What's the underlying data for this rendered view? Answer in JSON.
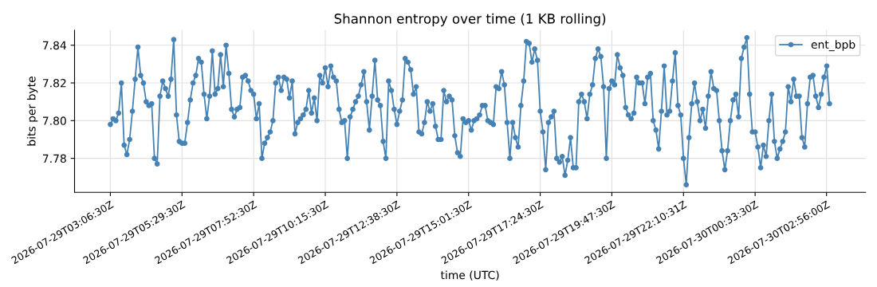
{
  "chart_data": {
    "type": "line",
    "title": "Shannon entropy over time (1 KB rolling)",
    "xlabel": "time (UTC)",
    "ylabel": "bits per byte",
    "x": [
      "2026-07-29T03:06:30",
      "2026-07-29T03:12:00",
      "2026-07-29T03:17:30",
      "2026-07-29T03:23:00",
      "2026-07-29T03:28:30",
      "2026-07-29T03:34:00",
      "2026-07-29T03:39:30",
      "2026-07-29T03:45:00",
      "2026-07-29T03:50:30",
      "2026-07-29T03:56:00",
      "2026-07-29T04:01:30",
      "2026-07-29T04:07:00",
      "2026-07-29T04:12:30",
      "2026-07-29T04:18:00",
      "2026-07-29T04:23:30",
      "2026-07-29T04:29:00",
      "2026-07-29T04:34:30",
      "2026-07-29T04:40:00",
      "2026-07-29T04:45:30",
      "2026-07-29T04:51:00",
      "2026-07-29T04:56:30",
      "2026-07-29T05:02:00",
      "2026-07-29T05:07:30",
      "2026-07-29T05:13:00",
      "2026-07-29T05:18:30",
      "2026-07-29T05:24:00",
      "2026-07-29T05:29:30",
      "2026-07-29T05:35:00",
      "2026-07-29T05:40:30",
      "2026-07-29T05:46:00",
      "2026-07-29T05:51:30",
      "2026-07-29T05:57:00",
      "2026-07-29T06:02:30",
      "2026-07-29T06:08:00",
      "2026-07-29T06:13:30",
      "2026-07-29T06:19:00",
      "2026-07-29T06:24:30",
      "2026-07-29T06:30:00",
      "2026-07-29T06:35:30",
      "2026-07-29T06:41:00",
      "2026-07-29T06:46:30",
      "2026-07-29T06:52:00",
      "2026-07-29T06:57:30",
      "2026-07-29T07:03:00",
      "2026-07-29T07:08:30",
      "2026-07-29T07:14:00",
      "2026-07-29T07:19:30",
      "2026-07-29T07:25:00",
      "2026-07-29T07:30:30",
      "2026-07-29T07:36:00",
      "2026-07-29T07:41:30",
      "2026-07-29T07:47:00",
      "2026-07-29T07:52:30",
      "2026-07-29T07:58:00",
      "2026-07-29T08:03:30",
      "2026-07-29T08:09:00",
      "2026-07-29T08:14:30",
      "2026-07-29T08:20:00",
      "2026-07-29T08:25:30",
      "2026-07-29T08:31:00",
      "2026-07-29T08:36:30",
      "2026-07-29T08:42:00",
      "2026-07-29T08:47:30",
      "2026-07-29T08:53:00",
      "2026-07-29T08:58:30",
      "2026-07-29T09:04:00",
      "2026-07-29T09:09:30",
      "2026-07-29T09:15:00",
      "2026-07-29T09:20:30",
      "2026-07-29T09:26:00",
      "2026-07-29T09:31:30",
      "2026-07-29T09:37:00",
      "2026-07-29T09:42:30",
      "2026-07-29T09:48:00",
      "2026-07-29T09:53:30",
      "2026-07-29T09:59:00",
      "2026-07-29T10:04:30",
      "2026-07-29T10:10:00",
      "2026-07-29T10:15:30",
      "2026-07-29T10:21:00",
      "2026-07-29T10:26:30",
      "2026-07-29T10:32:00",
      "2026-07-29T10:37:30",
      "2026-07-29T10:43:00",
      "2026-07-29T10:48:30",
      "2026-07-29T10:54:00",
      "2026-07-29T10:59:30",
      "2026-07-29T11:05:00",
      "2026-07-29T11:10:30",
      "2026-07-29T11:16:00",
      "2026-07-29T11:21:30",
      "2026-07-29T11:27:00",
      "2026-07-29T11:32:30",
      "2026-07-29T11:38:00",
      "2026-07-29T11:43:30",
      "2026-07-29T11:49:00",
      "2026-07-29T11:54:30",
      "2026-07-29T12:00:00",
      "2026-07-29T12:05:30",
      "2026-07-29T12:11:00",
      "2026-07-29T12:16:30",
      "2026-07-29T12:22:00",
      "2026-07-29T12:27:30",
      "2026-07-29T12:33:00",
      "2026-07-29T12:38:30",
      "2026-07-29T12:44:00",
      "2026-07-29T12:49:30",
      "2026-07-29T12:55:00",
      "2026-07-29T13:00:30",
      "2026-07-29T13:06:00",
      "2026-07-29T13:11:30",
      "2026-07-29T13:17:00",
      "2026-07-29T13:22:30",
      "2026-07-29T13:28:00",
      "2026-07-29T13:33:30",
      "2026-07-29T13:39:00",
      "2026-07-29T13:44:30",
      "2026-07-29T13:50:00",
      "2026-07-29T13:55:30",
      "2026-07-29T14:01:00",
      "2026-07-29T14:06:30",
      "2026-07-29T14:12:00",
      "2026-07-29T14:17:30",
      "2026-07-29T14:23:00",
      "2026-07-29T14:28:30",
      "2026-07-29T14:34:00",
      "2026-07-29T14:39:30",
      "2026-07-29T14:45:00",
      "2026-07-29T14:50:30",
      "2026-07-29T14:56:00",
      "2026-07-29T15:01:30",
      "2026-07-29T15:07:00",
      "2026-07-29T15:12:30",
      "2026-07-29T15:18:00",
      "2026-07-29T15:23:30",
      "2026-07-29T15:29:00",
      "2026-07-29T15:34:30",
      "2026-07-29T15:40:00",
      "2026-07-29T15:45:30",
      "2026-07-29T15:51:00",
      "2026-07-29T15:56:30",
      "2026-07-29T16:02:00",
      "2026-07-29T16:07:30",
      "2026-07-29T16:13:00",
      "2026-07-29T16:18:30",
      "2026-07-29T16:24:00",
      "2026-07-29T16:29:30",
      "2026-07-29T16:35:00",
      "2026-07-29T16:40:30",
      "2026-07-29T16:46:00",
      "2026-07-29T16:51:30",
      "2026-07-29T16:57:00",
      "2026-07-29T17:02:30",
      "2026-07-29T17:08:00",
      "2026-07-29T17:13:30",
      "2026-07-29T17:19:00",
      "2026-07-29T17:24:30",
      "2026-07-29T17:30:00",
      "2026-07-29T17:35:30",
      "2026-07-29T17:41:00",
      "2026-07-29T17:46:30",
      "2026-07-29T17:52:00",
      "2026-07-29T17:57:30",
      "2026-07-29T18:03:00",
      "2026-07-29T18:08:30",
      "2026-07-29T18:14:00",
      "2026-07-29T18:19:30",
      "2026-07-29T18:25:00",
      "2026-07-29T18:30:30",
      "2026-07-29T18:36:00",
      "2026-07-29T18:41:30",
      "2026-07-29T18:47:00",
      "2026-07-29T18:52:30",
      "2026-07-29T18:58:00",
      "2026-07-29T19:03:30",
      "2026-07-29T19:09:00",
      "2026-07-29T19:14:30",
      "2026-07-29T19:20:00",
      "2026-07-29T19:25:30",
      "2026-07-29T19:31:00",
      "2026-07-29T19:36:30",
      "2026-07-29T19:42:00",
      "2026-07-29T19:47:30",
      "2026-07-29T19:53:00",
      "2026-07-29T19:58:30",
      "2026-07-29T20:04:00",
      "2026-07-29T20:09:30",
      "2026-07-29T20:15:00",
      "2026-07-29T20:20:30",
      "2026-07-29T20:26:00",
      "2026-07-29T20:31:30",
      "2026-07-29T20:37:00",
      "2026-07-29T20:42:30",
      "2026-07-29T20:48:00",
      "2026-07-29T20:53:30",
      "2026-07-29T20:59:00",
      "2026-07-29T21:04:30",
      "2026-07-29T21:10:00",
      "2026-07-29T21:15:30",
      "2026-07-29T21:21:00",
      "2026-07-29T21:26:30",
      "2026-07-29T21:32:00",
      "2026-07-29T21:37:30",
      "2026-07-29T21:43:00",
      "2026-07-29T21:48:30",
      "2026-07-29T21:54:00",
      "2026-07-29T21:59:30",
      "2026-07-29T22:05:00",
      "2026-07-29T22:10:30",
      "2026-07-29T22:16:00",
      "2026-07-29T22:21:30",
      "2026-07-29T22:27:00",
      "2026-07-29T22:32:30",
      "2026-07-29T22:38:00",
      "2026-07-29T22:43:30",
      "2026-07-29T22:49:00",
      "2026-07-29T22:54:30",
      "2026-07-29T23:00:00",
      "2026-07-29T23:05:30",
      "2026-07-29T23:11:00",
      "2026-07-29T23:16:30",
      "2026-07-29T23:22:00",
      "2026-07-29T23:27:30",
      "2026-07-29T23:33:00",
      "2026-07-29T23:38:30",
      "2026-07-29T23:44:00",
      "2026-07-29T23:49:30",
      "2026-07-29T23:55:00",
      "2026-07-30T00:00:30",
      "2026-07-30T00:06:00",
      "2026-07-30T00:11:30",
      "2026-07-30T00:17:00",
      "2026-07-30T00:22:30",
      "2026-07-30T00:28:00",
      "2026-07-30T00:33:30",
      "2026-07-30T00:39:00",
      "2026-07-30T00:44:30",
      "2026-07-30T00:50:00",
      "2026-07-30T00:55:30",
      "2026-07-30T01:01:00",
      "2026-07-30T01:06:30",
      "2026-07-30T01:12:00",
      "2026-07-30T01:17:30",
      "2026-07-30T01:23:00",
      "2026-07-30T01:28:30",
      "2026-07-30T01:34:00",
      "2026-07-30T01:39:30",
      "2026-07-30T01:45:00",
      "2026-07-30T01:50:30",
      "2026-07-30T01:56:00",
      "2026-07-30T02:01:30",
      "2026-07-30T02:07:00",
      "2026-07-30T02:12:30",
      "2026-07-30T02:18:00",
      "2026-07-30T02:23:30",
      "2026-07-30T02:29:00",
      "2026-07-30T02:34:30",
      "2026-07-30T02:40:00",
      "2026-07-30T02:45:30",
      "2026-07-30T02:51:00",
      "2026-07-30T02:56:30",
      "2026-07-30T03:02:00"
    ],
    "series": [
      {
        "name": "ent_bpb",
        "color": "#4682b4",
        "values": [
          7.798,
          7.801,
          7.8,
          7.804,
          7.82,
          7.787,
          7.782,
          7.79,
          7.805,
          7.822,
          7.839,
          7.824,
          7.82,
          7.81,
          7.808,
          7.809,
          7.78,
          7.777,
          7.813,
          7.821,
          7.817,
          7.813,
          7.822,
          7.843,
          7.803,
          7.789,
          7.788,
          7.788,
          7.799,
          7.811,
          7.82,
          7.824,
          7.833,
          7.831,
          7.814,
          7.801,
          7.813,
          7.837,
          7.814,
          7.817,
          7.835,
          7.818,
          7.84,
          7.825,
          7.806,
          7.802,
          7.806,
          7.807,
          7.823,
          7.824,
          7.821,
          7.816,
          7.814,
          7.801,
          7.809,
          7.78,
          7.788,
          7.791,
          7.794,
          7.8,
          7.82,
          7.823,
          7.816,
          7.823,
          7.822,
          7.812,
          7.821,
          7.793,
          7.799,
          7.801,
          7.803,
          7.806,
          7.816,
          7.804,
          7.812,
          7.8,
          7.824,
          7.82,
          7.828,
          7.818,
          7.829,
          7.823,
          7.821,
          7.806,
          7.799,
          7.8,
          7.78,
          7.802,
          7.806,
          7.81,
          7.813,
          7.819,
          7.826,
          7.81,
          7.795,
          7.813,
          7.832,
          7.811,
          7.808,
          7.789,
          7.78,
          7.821,
          7.816,
          7.806,
          7.798,
          7.805,
          7.811,
          7.833,
          7.831,
          7.827,
          7.814,
          7.818,
          7.794,
          7.793,
          7.799,
          7.81,
          7.805,
          7.809,
          7.797,
          7.79,
          7.79,
          7.816,
          7.81,
          7.813,
          7.811,
          7.792,
          7.783,
          7.781,
          7.801,
          7.799,
          7.8,
          7.795,
          7.8,
          7.801,
          7.803,
          7.808,
          7.808,
          7.8,
          7.799,
          7.798,
          7.818,
          7.817,
          7.826,
          7.819,
          7.799,
          7.78,
          7.799,
          7.791,
          7.786,
          7.808,
          7.821,
          7.842,
          7.841,
          7.831,
          7.838,
          7.832,
          7.805,
          7.794,
          7.774,
          7.799,
          7.802,
          7.805,
          7.78,
          7.778,
          7.781,
          7.771,
          7.779,
          7.791,
          7.775,
          7.775,
          7.81,
          7.814,
          7.81,
          7.801,
          7.814,
          7.819,
          7.833,
          7.838,
          7.834,
          7.818,
          7.78,
          7.817,
          7.821,
          7.819,
          7.835,
          7.828,
          7.824,
          7.807,
          7.803,
          7.801,
          7.804,
          7.823,
          7.82,
          7.82,
          7.809,
          7.823,
          7.825,
          7.8,
          7.795,
          7.785,
          7.805,
          7.829,
          7.803,
          7.805,
          7.821,
          7.836,
          7.808,
          7.803,
          7.78,
          7.766,
          7.791,
          7.809,
          7.82,
          7.81,
          7.8,
          7.806,
          7.796,
          7.813,
          7.826,
          7.817,
          7.816,
          7.8,
          7.784,
          7.774,
          7.784,
          7.8,
          7.811,
          7.814,
          7.802,
          7.833,
          7.839,
          7.844,
          7.814,
          7.794,
          7.794,
          7.786,
          7.775,
          7.787,
          7.781,
          7.8,
          7.814,
          7.789,
          7.78,
          7.785,
          7.789,
          7.794,
          7.818,
          7.81,
          7.822,
          7.813,
          7.813,
          7.791,
          7.786,
          7.809,
          7.823,
          7.824,
          7.813,
          7.807,
          7.814,
          7.823,
          7.829,
          7.809
        ]
      }
    ],
    "xlim": [
      "2026-07-29T01:55:00",
      "2026-07-30T04:14:00"
    ],
    "xticks": [
      {
        "value": "2026-07-29T03:06:30",
        "label": "2026-07-29T03:06:30Z"
      },
      {
        "value": "2026-07-29T05:29:30",
        "label": "2026-07-29T05:29:30Z"
      },
      {
        "value": "2026-07-29T07:52:30",
        "label": "2026-07-29T07:52:30Z"
      },
      {
        "value": "2026-07-29T10:15:30",
        "label": "2026-07-29T10:15:30Z"
      },
      {
        "value": "2026-07-29T12:38:30",
        "label": "2026-07-29T12:38:30Z"
      },
      {
        "value": "2026-07-29T15:01:30",
        "label": "2026-07-29T15:01:30Z"
      },
      {
        "value": "2026-07-29T17:24:30",
        "label": "2026-07-29T17:24:30Z"
      },
      {
        "value": "2026-07-29T19:47:30",
        "label": "2026-07-29T19:47:30Z"
      },
      {
        "value": "2026-07-29T22:10:31",
        "label": "2026-07-29T22:10:31Z"
      },
      {
        "value": "2026-07-30T00:33:30",
        "label": "2026-07-30T00:33:30Z"
      },
      {
        "value": "2026-07-30T02:56:00",
        "label": "2026-07-30T02:56:00Z"
      }
    ],
    "ylim": [
      7.762,
      7.848
    ],
    "yticks": [
      {
        "value": 7.78,
        "label": "7.78"
      },
      {
        "value": 7.8,
        "label": "7.80"
      },
      {
        "value": 7.82,
        "label": "7.82"
      },
      {
        "value": 7.84,
        "label": "7.84"
      }
    ],
    "grid": true,
    "legend": "top right",
    "marker": "circle",
    "line_style": "solid"
  }
}
